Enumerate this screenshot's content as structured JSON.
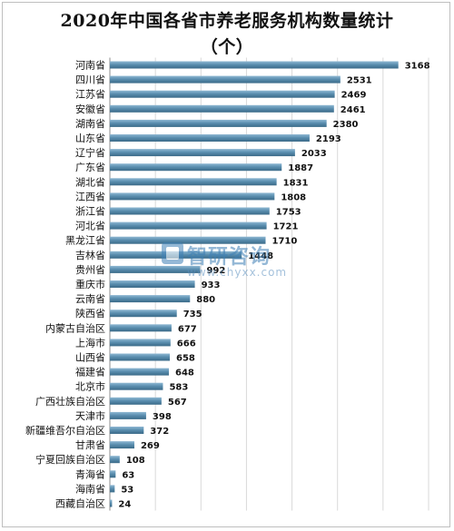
{
  "chart_data": {
    "type": "bar",
    "orientation": "horizontal",
    "title": "2020年中国各省市养老服务机构数量统计",
    "subtitle": "（个）",
    "categories": [
      "河南省",
      "四川省",
      "江苏省",
      "安徽省",
      "湖南省",
      "山东省",
      "辽宁省",
      "广东省",
      "湖北省",
      "江西省",
      "浙江省",
      "河北省",
      "黑龙江省",
      "吉林省",
      "贵州省",
      "重庆市",
      "云南省",
      "陕西省",
      "内蒙古自治区",
      "上海市",
      "山西省",
      "福建省",
      "北京市",
      "广西壮族自治区",
      "天津市",
      "新疆维吾尔自治区",
      "甘肃省",
      "宁夏回族自治区",
      "青海省",
      "海南省",
      "西藏自治区"
    ],
    "values": [
      3168,
      2531,
      2469,
      2461,
      2380,
      2193,
      2033,
      1887,
      1831,
      1808,
      1753,
      1721,
      1710,
      1448,
      992,
      933,
      880,
      735,
      677,
      666,
      658,
      648,
      583,
      567,
      398,
      372,
      269,
      108,
      63,
      53,
      24
    ],
    "xlim": [
      0,
      3500
    ],
    "grid": true,
    "legend": "none",
    "bar_color": "#5b8fb0"
  },
  "watermark": {
    "name": "智研咨询",
    "url": "www.chyxx.com"
  }
}
